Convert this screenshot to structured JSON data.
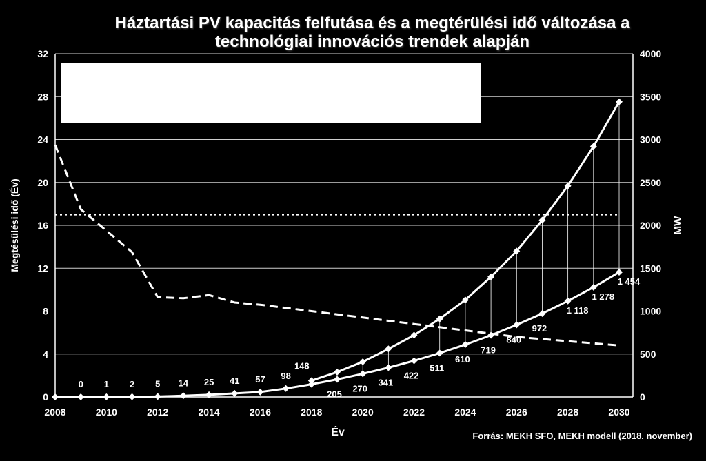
{
  "title_line1": "Háztartási PV kapacitás felfutása és a megtérülési idő változása a",
  "title_line2": "technológiai innovációs trendek alapján",
  "source": "Forrás: MEKH SFO, MEKH modell (2018. november)",
  "chart_data": {
    "type": "line",
    "xlabel": "Év",
    "ylabel_left": "Megtésülési idő (Év)",
    "ylabel_right": "MW",
    "xlim": [
      2008,
      2030
    ],
    "x_ticks": [
      2008,
      2010,
      2012,
      2014,
      2016,
      2018,
      2020,
      2022,
      2024,
      2026,
      2028,
      2030
    ],
    "ylim_left": [
      0,
      32
    ],
    "y_ticks_left": [
      0,
      4,
      8,
      12,
      16,
      20,
      24,
      28,
      32
    ],
    "ylim_right": [
      0,
      4000
    ],
    "y_ticks_right": [
      0,
      500,
      1000,
      1500,
      2000,
      2500,
      3000,
      3500,
      4000
    ],
    "grid": true,
    "legend_box_color": "#ffffff",
    "series": [
      {
        "axis": "right",
        "style": "solid",
        "marker": "diamond",
        "labeled": true,
        "x": [
          2008,
          2009,
          2010,
          2011,
          2012,
          2013,
          2014,
          2015,
          2016,
          2017,
          2018,
          2019,
          2020,
          2021,
          2022,
          2023,
          2024,
          2025,
          2026,
          2027,
          2028,
          2029,
          2030
        ],
        "values": [
          0,
          0,
          1,
          2,
          5,
          14,
          25,
          41,
          57,
          98,
          148,
          205,
          270,
          341,
          422,
          511,
          610,
          719,
          840,
          972,
          1118,
          1278,
          1454
        ],
        "labels": [
          "",
          "0",
          "1",
          "2",
          "5",
          "14",
          "25",
          "41",
          "57",
          "98",
          "148",
          "205",
          "270",
          "341",
          "422",
          "511",
          "610",
          "719",
          "840",
          "972",
          "1 118",
          "1 278",
          "1 454"
        ]
      },
      {
        "axis": "right",
        "style": "solid",
        "marker": "diamond",
        "labeled": false,
        "x": [
          2018,
          2019,
          2020,
          2021,
          2022,
          2023,
          2024,
          2025,
          2026,
          2027,
          2028,
          2029,
          2030
        ],
        "values": [
          190,
          290,
          410,
          560,
          720,
          910,
          1130,
          1400,
          1700,
          2060,
          2460,
          2920,
          3440
        ]
      },
      {
        "axis": "left",
        "style": "dashed",
        "marker": "none",
        "labeled": false,
        "x": [
          2008,
          2009,
          2010,
          2011,
          2012,
          2013,
          2014,
          2015,
          2016,
          2017,
          2018,
          2019,
          2020,
          2021,
          2022,
          2023,
          2024,
          2025,
          2026,
          2027,
          2028,
          2029,
          2030
        ],
        "values": [
          23.5,
          17.5,
          15.5,
          13.5,
          9.3,
          9.2,
          9.5,
          8.8,
          8.6,
          8.3,
          8.0,
          7.7,
          7.4,
          7.1,
          6.8,
          6.5,
          6.2,
          5.9,
          5.6,
          5.4,
          5.2,
          5.0,
          4.8
        ]
      },
      {
        "axis": "left",
        "style": "dotted",
        "marker": "none",
        "labeled": false,
        "x": [
          2008,
          2030
        ],
        "values": [
          17,
          17
        ]
      }
    ]
  }
}
